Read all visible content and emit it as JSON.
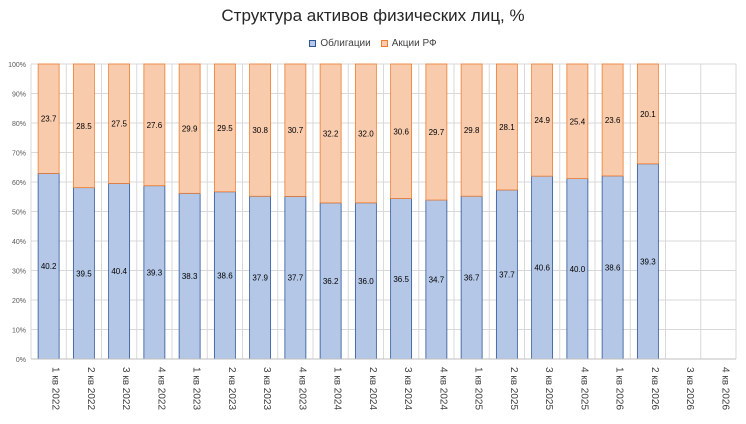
{
  "chart_data": {
    "type": "bar",
    "stacked": true,
    "title": "Структура активов физических лиц, %",
    "categories": [
      "1 кв 2022",
      "2 кв 2022",
      "3 кв 2022",
      "4 кв 2022",
      "1 кв 2023",
      "2 кв 2023",
      "3 кв 2023",
      "4 кв 2023",
      "1 кв 2024",
      "2 кв 2024",
      "3 кв 2024",
      "4 кв 2024",
      "1 кв 2025",
      "2 кв 2025",
      "3 кв 2025",
      "4 кв 2025",
      "1 кв 2026",
      "2 кв 2026",
      "3 кв 2026",
      "4 кв 2026"
    ],
    "series": [
      {
        "name": "Облигации",
        "color": "#B4C7E7",
        "border": "#2F5597",
        "values": [
          40.2,
          39.5,
          40.4,
          39.3,
          38.3,
          38.6,
          37.9,
          37.7,
          36.2,
          36.0,
          36.5,
          34.7,
          36.7,
          37.7,
          40.6,
          40.0,
          38.6,
          39.3,
          null,
          null
        ]
      },
      {
        "name": "Акции РФ",
        "color": "#F8CBAD",
        "border": "#ED7D31",
        "values": [
          23.7,
          28.5,
          27.5,
          27.6,
          29.9,
          29.5,
          30.8,
          30.7,
          32.2,
          32.0,
          30.6,
          29.7,
          29.8,
          28.1,
          24.9,
          25.4,
          23.6,
          20.1,
          null,
          null
        ]
      }
    ],
    "y_ticks": [
      "0%",
      "10%",
      "20%",
      "30%",
      "40%",
      "50%",
      "60%",
      "70%",
      "80%",
      "90%",
      "100%"
    ],
    "ylim": [
      0,
      100
    ],
    "grid": true,
    "legend_position": "top-center"
  }
}
